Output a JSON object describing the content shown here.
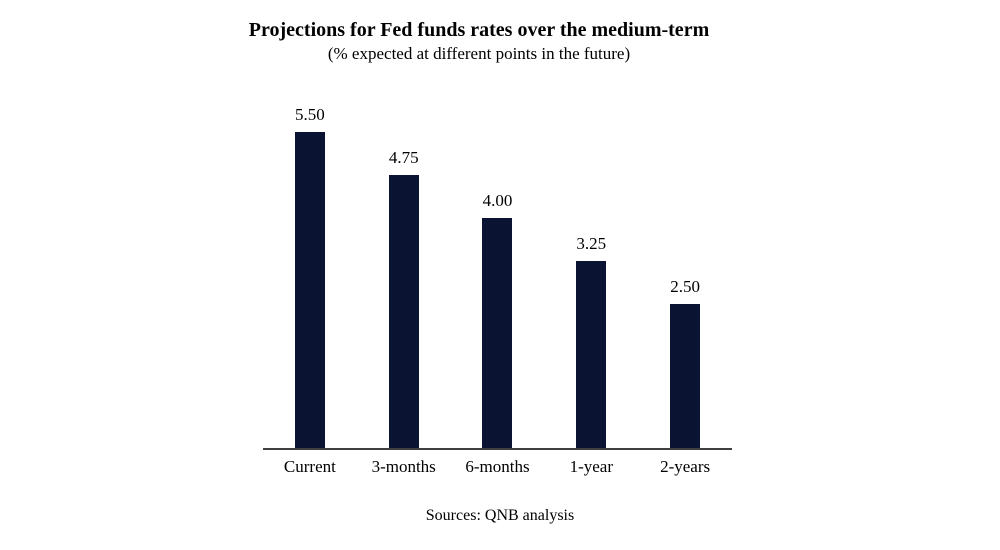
{
  "chart_data": {
    "type": "bar",
    "title": "Projections for Fed funds rates over the medium-term",
    "subtitle": "(% expected at different points in the future)",
    "categories": [
      "Current",
      "3-months",
      "6-months",
      "1-year",
      "2-years"
    ],
    "values": [
      5.5,
      4.75,
      4.0,
      3.25,
      2.5
    ],
    "value_labels": [
      "5.50",
      "4.75",
      "4.00",
      "3.25",
      "2.50"
    ],
    "source": "Sources: QNB analysis",
    "xlabel": "",
    "ylabel": "",
    "ylim": [
      0,
      5.5
    ],
    "grid": false,
    "legend": false,
    "bar_color": "#0a1432",
    "axis_color": "#404040",
    "background_color": "#ffffff",
    "text_color": "#000000"
  }
}
